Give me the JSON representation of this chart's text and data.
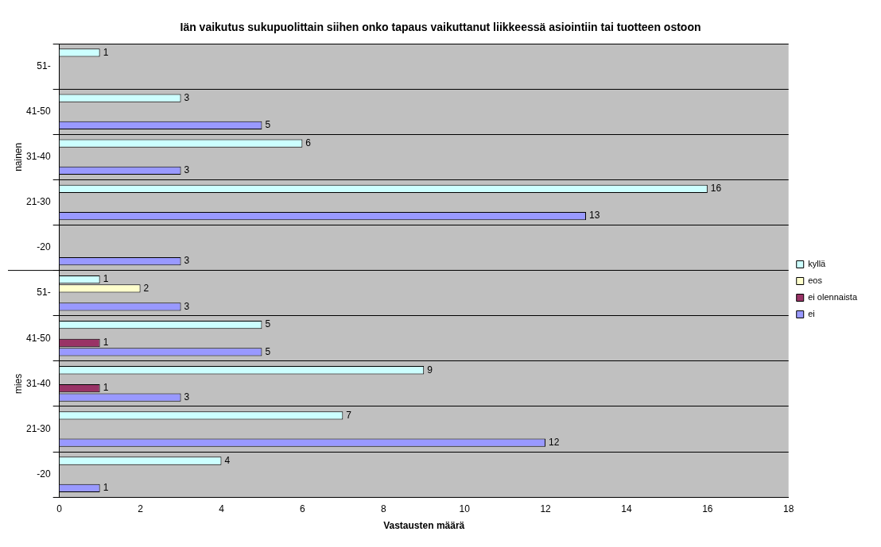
{
  "chart_data": {
    "type": "bar",
    "orientation": "horizontal",
    "title": "Iän vaikutus sukupuolittain siihen onko tapaus vaikuttanut liikkeessä asiointiin tai tuotteen ostoon",
    "xlabel": "Vastausten määrä",
    "categories": [
      "51-",
      "41-50",
      "31-40",
      "21-30",
      "-20",
      "51-",
      "41-50",
      "31-40",
      "21-30",
      "-20"
    ],
    "annotations": [
      "nainen",
      "mies"
    ],
    "series": [
      {
        "name": "kyllä",
        "color": "#ccffff",
        "values": [
          1,
          3,
          6,
          16,
          null,
          1,
          5,
          9,
          7,
          4
        ]
      },
      {
        "name": "eos",
        "color": "#ffffcc",
        "values": [
          null,
          null,
          null,
          null,
          null,
          2,
          null,
          null,
          null,
          null
        ]
      },
      {
        "name": "ei olennaista",
        "color": "#993366",
        "values": [
          null,
          null,
          null,
          null,
          null,
          null,
          1,
          1,
          null,
          null
        ]
      },
      {
        "name": "ei",
        "color": "#9999ff",
        "values": [
          null,
          5,
          3,
          13,
          3,
          3,
          5,
          3,
          12,
          1
        ]
      }
    ],
    "xlim": [
      0,
      18
    ],
    "xticks": [
      0,
      2,
      4,
      6,
      8,
      10,
      12,
      14,
      16,
      18
    ],
    "grid": "y",
    "legend": "right",
    "data_labels": true
  }
}
